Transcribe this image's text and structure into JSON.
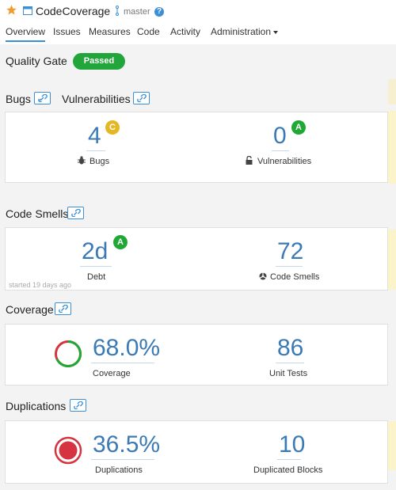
{
  "header": {
    "project_name": "CodeCoverage",
    "branch": "master",
    "help": "?"
  },
  "nav": {
    "items": [
      "Overview",
      "Issues",
      "Measures",
      "Code",
      "Activity",
      "Administration"
    ]
  },
  "quality_gate": {
    "label": "Quality Gate",
    "status": "Passed",
    "status_color": "#22a53a"
  },
  "bugs_section": {
    "title_bugs": "Bugs",
    "title_vulns": "Vulnerabilities",
    "bugs": {
      "value": "4",
      "rating": "C",
      "label": "Bugs"
    },
    "vulnerabilities": {
      "value": "0",
      "rating": "A",
      "label": "Vulnerabilities"
    }
  },
  "code_smells_section": {
    "title": "Code Smells",
    "debt": {
      "value": "2d",
      "rating": "A",
      "label": "Debt"
    },
    "smells": {
      "value": "72",
      "label": "Code Smells"
    },
    "started": "started 19 days ago"
  },
  "coverage_section": {
    "title": "Coverage",
    "coverage": {
      "value": "68.0%",
      "label": "Coverage",
      "fraction": 0.68
    },
    "tests": {
      "value": "86",
      "label": "Unit Tests"
    }
  },
  "duplications_section": {
    "title": "Duplications",
    "duplications": {
      "value": "36.5%",
      "label": "Duplications"
    },
    "blocks": {
      "value": "10",
      "label": "Duplicated Blocks"
    }
  },
  "colors": {
    "accent": "#3b8fd6",
    "value_blue": "#3b7ab5",
    "rating_a": "#1fa834",
    "rating_c": "#e5b823",
    "coverage_green": "#1fa834",
    "coverage_red": "#d4333f",
    "duplication_red": "#d4333f"
  }
}
